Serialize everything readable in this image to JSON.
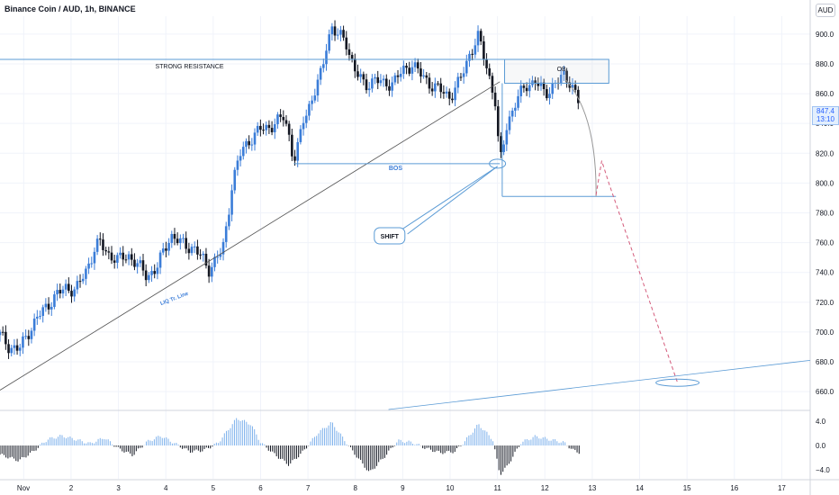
{
  "header": {
    "title": "Binance Coin / AUD, 1h, BINANCE",
    "currency": "AUD"
  },
  "last_price": {
    "value": "847.4",
    "countdown": "13:10"
  },
  "annotations": {
    "resistance": "STRONG RESISTANCE",
    "bos": "BOS",
    "shift": "SHIFT",
    "ob": "OB",
    "trendline": "LIQ Tr. Line"
  },
  "colors": {
    "up": "#3b7dd8",
    "down": "#131722",
    "line_blue": "#5b9bd5",
    "dashed": "#d45c7c",
    "grid": "#f0f3fa"
  },
  "chart_data": [
    {
      "type": "candlestick",
      "title": "Binance Coin / AUD, 1h, BINANCE",
      "y_unit": "AUD",
      "ylim": [
        648,
        912
      ],
      "yticks": [
        660.0,
        680.0,
        700.0,
        720.0,
        740.0,
        760.0,
        780.0,
        800.0,
        820.0,
        840.0,
        860.0,
        880.0,
        900.0
      ],
      "ytick_labels": [
        "660.0",
        "680.0",
        "700.0",
        "720.0",
        "740.0",
        "760.0",
        "780.0",
        "800.0",
        "820.0",
        "840.0",
        "860.0",
        "880.0",
        "900.0"
      ],
      "x_ticks": [
        "Nov",
        "2",
        "3",
        "4",
        "5",
        "6",
        "7",
        "8",
        "9",
        "10",
        "11",
        "12",
        "13",
        "14",
        "15",
        "16",
        "17"
      ],
      "x_day_range": [
        0.5,
        17.6
      ],
      "price_path": [
        [
          0.5,
          698
        ],
        [
          0.7,
          690
        ],
        [
          0.9,
          688
        ],
        [
          1.1,
          700
        ],
        [
          1.3,
          710
        ],
        [
          1.5,
          718
        ],
        [
          1.7,
          725
        ],
        [
          1.9,
          730
        ],
        [
          2.1,
          728
        ],
        [
          2.3,
          740
        ],
        [
          2.5,
          756
        ],
        [
          2.6,
          760
        ],
        [
          2.8,
          752
        ],
        [
          3.0,
          748
        ],
        [
          3.2,
          752
        ],
        [
          3.4,
          745
        ],
        [
          3.6,
          738
        ],
        [
          3.8,
          742
        ],
        [
          4.0,
          758
        ],
        [
          4.1,
          765
        ],
        [
          4.3,
          760
        ],
        [
          4.6,
          756
        ],
        [
          4.8,
          748
        ],
        [
          4.9,
          742
        ],
        [
          5.0,
          746
        ],
        [
          5.2,
          755
        ],
        [
          5.3,
          775
        ],
        [
          5.4,
          800
        ],
        [
          5.6,
          822
        ],
        [
          5.8,
          830
        ],
        [
          6.0,
          836
        ],
        [
          6.2,
          838
        ],
        [
          6.4,
          842
        ],
        [
          6.5,
          845
        ],
        [
          6.6,
          832
        ],
        [
          6.7,
          815
        ],
        [
          6.8,
          825
        ],
        [
          6.9,
          842
        ],
        [
          7.1,
          858
        ],
        [
          7.3,
          875
        ],
        [
          7.4,
          895
        ],
        [
          7.5,
          905
        ],
        [
          7.6,
          900
        ],
        [
          7.8,
          895
        ],
        [
          8.0,
          875
        ],
        [
          8.2,
          865
        ],
        [
          8.4,
          870
        ],
        [
          8.6,
          866
        ],
        [
          8.8,
          868
        ],
        [
          9.0,
          875
        ],
        [
          9.2,
          880
        ],
        [
          9.4,
          872
        ],
        [
          9.6,
          866
        ],
        [
          9.8,
          862
        ],
        [
          10.0,
          858
        ],
        [
          10.2,
          868
        ],
        [
          10.4,
          886
        ],
        [
          10.6,
          898
        ],
        [
          10.8,
          875
        ],
        [
          10.95,
          855
        ],
        [
          11.05,
          812
        ],
        [
          11.2,
          840
        ],
        [
          11.4,
          855
        ],
        [
          11.6,
          866
        ],
        [
          11.8,
          868
        ],
        [
          12.0,
          860
        ],
        [
          12.2,
          866
        ],
        [
          12.4,
          872
        ],
        [
          12.55,
          868
        ],
        [
          12.7,
          855
        ],
        [
          12.75,
          847.4
        ]
      ],
      "levels": {
        "strong_resistance": 883,
        "bos": 813,
        "ob_box": [
          867,
          883
        ],
        "target_box_bottom": 791,
        "target": 666
      },
      "projection": [
        [
          12.45,
          869
        ],
        [
          13.0,
          822
        ],
        [
          13.1,
          800
        ],
        [
          13.2,
          815
        ],
        [
          14.8,
          666
        ]
      ],
      "grid": true
    },
    {
      "type": "bar",
      "title": "",
      "ylim": [
        -5.5,
        5.5
      ],
      "yticks": [
        4.0,
        0.0,
        -4.0
      ],
      "ytick_labels": [
        "4.0",
        "0.0",
        "−4.0"
      ],
      "oscillator_path": [
        [
          0.5,
          -1.5
        ],
        [
          0.9,
          -2.5
        ],
        [
          1.2,
          -1
        ],
        [
          1.5,
          1
        ],
        [
          1.8,
          1.6
        ],
        [
          2.1,
          1
        ],
        [
          2.4,
          0.3
        ],
        [
          2.7,
          1.3
        ],
        [
          3.0,
          -0.5
        ],
        [
          3.3,
          -1.6
        ],
        [
          3.6,
          0.6
        ],
        [
          3.9,
          1.6
        ],
        [
          4.2,
          0.3
        ],
        [
          4.5,
          -1
        ],
        [
          4.8,
          -0.8
        ],
        [
          5.1,
          0.4
        ],
        [
          5.5,
          4.5
        ],
        [
          5.8,
          3.5
        ],
        [
          6.0,
          0.5
        ],
        [
          6.3,
          -1.5
        ],
        [
          6.6,
          -3.2
        ],
        [
          6.9,
          -1
        ],
        [
          7.2,
          2
        ],
        [
          7.5,
          3.8
        ],
        [
          7.9,
          -0.5
        ],
        [
          8.3,
          -4.5
        ],
        [
          8.6,
          -2
        ],
        [
          8.9,
          0.8
        ],
        [
          9.2,
          0.5
        ],
        [
          9.5,
          -0.5
        ],
        [
          9.8,
          -1.2
        ],
        [
          10.1,
          -1
        ],
        [
          10.3,
          0.6
        ],
        [
          10.6,
          3.5
        ],
        [
          10.9,
          1
        ],
        [
          11.05,
          -4.8
        ],
        [
          11.2,
          -3.5
        ],
        [
          11.5,
          0.5
        ],
        [
          11.8,
          1.5
        ],
        [
          12.1,
          1
        ],
        [
          12.4,
          0.5
        ],
        [
          12.6,
          -0.8
        ],
        [
          12.75,
          -1.2
        ]
      ]
    }
  ]
}
